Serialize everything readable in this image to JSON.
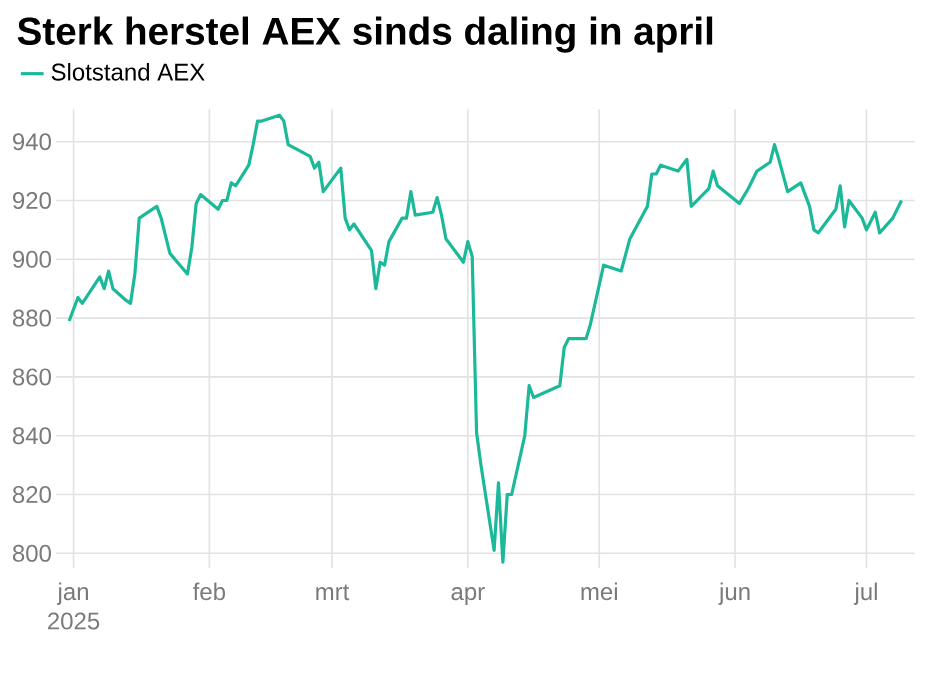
{
  "chart_data": {
    "type": "line",
    "title": "Sterk herstel AEX sinds daling in april",
    "x": [
      "2024-12-31",
      "2025-01-02",
      "2025-01-03",
      "2025-01-07",
      "2025-01-08",
      "2025-01-09",
      "2025-01-10",
      "2025-01-13",
      "2025-01-14",
      "2025-01-15",
      "2025-01-16",
      "2025-01-20",
      "2025-01-21",
      "2025-01-23",
      "2025-01-27",
      "2025-01-28",
      "2025-01-29",
      "2025-01-30",
      "2025-02-03",
      "2025-02-04",
      "2025-02-05",
      "2025-02-06",
      "2025-02-07",
      "2025-02-10",
      "2025-02-11",
      "2025-02-12",
      "2025-02-13",
      "2025-02-17",
      "2025-02-18",
      "2025-02-19",
      "2025-02-24",
      "2025-02-25",
      "2025-02-26",
      "2025-02-27",
      "2025-03-03",
      "2025-03-04",
      "2025-03-05",
      "2025-03-06",
      "2025-03-10",
      "2025-03-11",
      "2025-03-12",
      "2025-03-13",
      "2025-03-14",
      "2025-03-17",
      "2025-03-18",
      "2025-03-19",
      "2025-03-20",
      "2025-03-24",
      "2025-03-25",
      "2025-03-26",
      "2025-03-27",
      "2025-03-31",
      "2025-04-01",
      "2025-04-02",
      "2025-04-03",
      "2025-04-04",
      "2025-04-07",
      "2025-04-08",
      "2025-04-09",
      "2025-04-10",
      "2025-04-11",
      "2025-04-14",
      "2025-04-15",
      "2025-04-16",
      "2025-04-22",
      "2025-04-23",
      "2025-04-24",
      "2025-04-28",
      "2025-04-29",
      "2025-05-02",
      "2025-05-06",
      "2025-05-08",
      "2025-05-12",
      "2025-05-13",
      "2025-05-14",
      "2025-05-15",
      "2025-05-19",
      "2025-05-21",
      "2025-05-22",
      "2025-05-26",
      "2025-05-27",
      "2025-05-28",
      "2025-06-02",
      "2025-06-04",
      "2025-06-06",
      "2025-06-09",
      "2025-06-10",
      "2025-06-11",
      "2025-06-13",
      "2025-06-16",
      "2025-06-18",
      "2025-06-19",
      "2025-06-20",
      "2025-06-24",
      "2025-06-25",
      "2025-06-26",
      "2025-06-27",
      "2025-06-30",
      "2025-07-01",
      "2025-07-03",
      "2025-07-04",
      "2025-07-07",
      "2025-07-09"
    ],
    "series": [
      {
        "name": "Slotstand AEX",
        "color": "#1bb99a",
        "values": [
          879,
          887,
          885,
          894,
          890,
          896,
          890,
          886,
          885,
          895,
          914,
          918,
          914,
          902,
          895,
          904,
          919,
          922,
          917,
          920,
          920,
          926,
          925,
          932,
          939,
          947,
          947,
          949,
          947,
          939,
          935,
          931,
          933,
          923,
          931,
          914,
          910,
          912,
          903,
          890,
          899,
          898,
          906,
          914,
          914,
          923,
          915,
          916,
          921,
          915,
          907,
          899,
          906,
          901,
          841,
          830,
          801,
          824,
          797,
          820,
          820,
          840,
          857,
          853,
          857,
          870,
          873,
          873,
          878,
          898,
          896,
          907,
          918,
          929,
          929,
          932,
          930,
          934,
          918,
          924,
          930,
          925,
          919,
          924,
          930,
          933,
          939,
          934,
          923,
          926,
          918,
          910,
          909,
          917,
          925,
          911,
          920,
          914,
          910,
          916,
          909,
          914,
          920
        ]
      }
    ],
    "xlim": [
      "2024-12-28",
      "2025-07-12"
    ],
    "xticks": [
      {
        "value": "2025-01-01",
        "label": "jan 2025"
      },
      {
        "value": "2025-02-01",
        "label": "feb"
      },
      {
        "value": "2025-03-01",
        "label": "mrt"
      },
      {
        "value": "2025-04-01",
        "label": "apr"
      },
      {
        "value": "2025-05-01",
        "label": "mei"
      },
      {
        "value": "2025-06-01",
        "label": "jun"
      },
      {
        "value": "2025-07-01",
        "label": "jul"
      }
    ],
    "ylim": [
      795,
      951
    ],
    "yticks": [
      800,
      820,
      840,
      860,
      880,
      900,
      920,
      940
    ],
    "grid": true,
    "legend": "top left",
    "marker": "none",
    "line_style": "solid"
  }
}
